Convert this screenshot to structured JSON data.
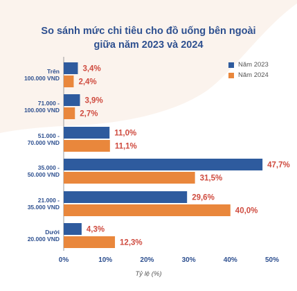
{
  "title_line1": "So sánh mức chi tiêu cho đồ uống bên ngoài",
  "title_line2": "giữa năm 2023 và 2024",
  "colors": {
    "series2023": "#2e5b9e",
    "series2024": "#e9873c",
    "value_label": "#cf4b3f",
    "text_dark": "#2d4f8f",
    "background_shape": "#fbf3ed"
  },
  "chart_data": {
    "type": "bar",
    "orientation": "horizontal",
    "title": "So sánh mức chi tiêu cho đồ uống bên ngoài giữa năm 2023 và 2024",
    "categories": [
      [
        "Trên",
        "100.000 VND"
      ],
      [
        "71.000 -",
        "100.000 VND"
      ],
      [
        "51.000 -",
        "70.000 VND"
      ],
      [
        "35.000 -",
        "50.000 VND"
      ],
      [
        "21.000 -",
        "35.000 VND"
      ],
      [
        "Dưới",
        "20.000 VND"
      ]
    ],
    "series": [
      {
        "name": "Năm 2023",
        "values": [
          3.4,
          3.9,
          11.0,
          47.7,
          29.6,
          4.3
        ],
        "labels": [
          "3,4%",
          "3,9%",
          "11,0%",
          "47,7%",
          "29,6%",
          "4,3%"
        ]
      },
      {
        "name": "Năm 2024",
        "values": [
          2.4,
          2.7,
          11.1,
          31.5,
          40.0,
          12.3
        ],
        "labels": [
          "2,4%",
          "2,7%",
          "11,1%",
          "31,5%",
          "40,0%",
          "12,3%"
        ]
      }
    ],
    "xlabel": "Tỷ lệ (%)",
    "xlim": [
      0,
      50
    ],
    "xticks": [
      0,
      10,
      20,
      30,
      40,
      50
    ],
    "xtick_labels": [
      "0%",
      "10%",
      "20%",
      "30%",
      "40%",
      "50%"
    ],
    "grid": false,
    "legend_position": "top-right"
  }
}
